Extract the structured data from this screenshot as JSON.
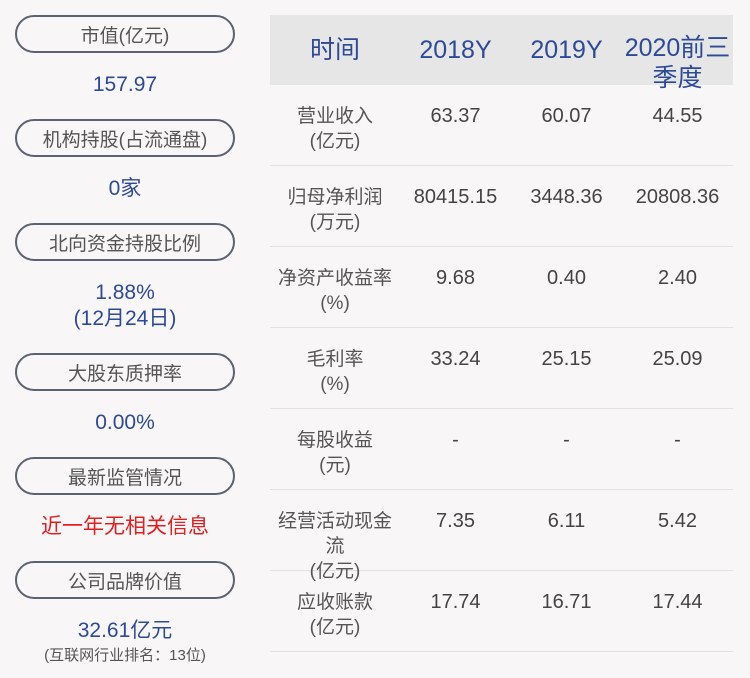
{
  "left": [
    {
      "label": "市值(亿元)",
      "value": "157.97"
    },
    {
      "label": "机构持股(占流通盘)",
      "value": "0家"
    },
    {
      "label": "北向资金持股比例",
      "value": "1.88%",
      "value2": "(12月24日)"
    },
    {
      "label": "大股东质押率",
      "value": "0.00%"
    },
    {
      "label": "最新监管情况",
      "value": "近一年无相关信息"
    },
    {
      "label": "公司品牌价值",
      "value": "32.61亿元",
      "note": "(互联网行业排名：13位)"
    }
  ],
  "table": {
    "headers": [
      "时间",
      "2018Y",
      "2019Y",
      "2020前三季度"
    ],
    "rows": [
      {
        "l1": "营业收入",
        "l2": "(亿元)",
        "v": [
          "63.37",
          "60.07",
          "44.55"
        ]
      },
      {
        "l1": "归母净利润",
        "l2": "(万元)",
        "v": [
          "80415.15",
          "3448.36",
          "20808.36"
        ]
      },
      {
        "l1": "净资产收益率",
        "l2": "(%)",
        "v": [
          "9.68",
          "0.40",
          "2.40"
        ]
      },
      {
        "l1": "毛利率",
        "l2": "(%)",
        "v": [
          "33.24",
          "25.15",
          "25.09"
        ]
      },
      {
        "l1": "每股收益",
        "l2": "(元)",
        "v": [
          "-",
          "-",
          "-"
        ]
      },
      {
        "l1": "经营活动现金流",
        "l2": "(亿元)",
        "v": [
          "7.35",
          "6.11",
          "5.42"
        ]
      },
      {
        "l1": "应收账款",
        "l2": "(亿元)",
        "v": [
          "17.74",
          "16.71",
          "17.44"
        ]
      }
    ]
  },
  "colors": {
    "accent": "#2d4a97",
    "alert": "#e02020",
    "header_bg": "#e6e6e6"
  }
}
